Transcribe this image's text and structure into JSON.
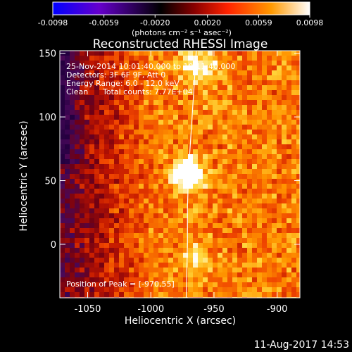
{
  "chart_data": {
    "type": "heatmap",
    "title": "Reconstructed RHESSI Image",
    "xlabel": "Heliocentric X (arcsec)",
    "ylabel": "Heliocentric Y (arcsec)",
    "xlim": [
      -1072,
      -882
    ],
    "ylim": [
      -42,
      152
    ],
    "x_ticks": [
      -1050,
      -1000,
      -950,
      -900
    ],
    "y_ticks": [
      0,
      50,
      100,
      150
    ],
    "colorbar": {
      "unit_label": "(photons cm⁻² s⁻¹ asec⁻²)",
      "min": -0.0098,
      "max": 0.0098,
      "tick_values": [
        -0.0098,
        -0.0059,
        -0.002,
        0.002,
        0.0059,
        0.0098
      ],
      "tick_labels": [
        "-0.0098",
        "-0.0059",
        "-0.0020",
        "0.0020",
        "0.0059",
        "0.0098"
      ],
      "colors": [
        "#0000ff",
        "#6600cc",
        "#000000",
        "#880000",
        "#ff2200",
        "#ff9900",
        "#ffffff"
      ]
    },
    "annotations": {
      "time_range": "25-Nov-2014 10:01:40.000 to 10:11:40.000",
      "detectors": "Detectors: 3F 6F 9F, Att 0",
      "energy_range": "Energy Range: 6.0 - 12.0 keV",
      "clean_label": "Clean",
      "total_counts": "Total counts: 7.77E+04",
      "peak_position": "Position of Peak = [-970,55]"
    },
    "peak": {
      "x": -970,
      "y": 55
    },
    "limb_curve": [
      {
        "x": -964,
        "y": 152
      },
      {
        "x": -966,
        "y": 120
      },
      {
        "x": -968,
        "y": 90
      },
      {
        "x": -970,
        "y": 60
      },
      {
        "x": -971,
        "y": 30
      },
      {
        "x": -971,
        "y": 0
      },
      {
        "x": -972,
        "y": -42
      }
    ]
  },
  "footer": {
    "timestamp": "11-Aug-2017 14:53"
  }
}
